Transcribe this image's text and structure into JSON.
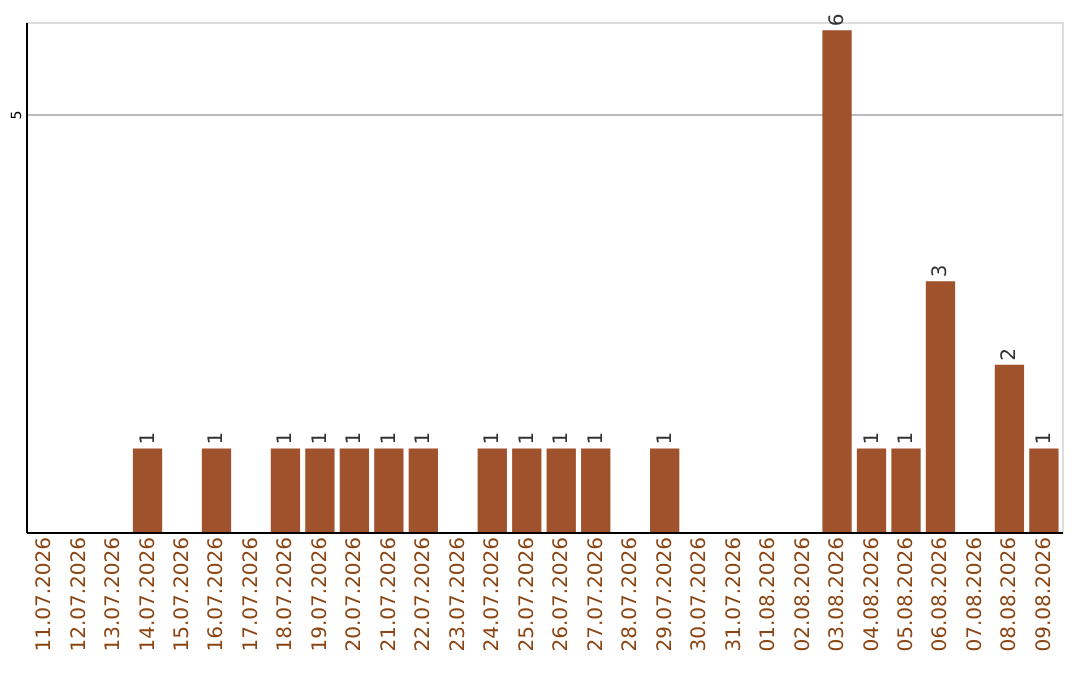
{
  "chart_data": {
    "type": "bar",
    "categories": [
      "11.07.2026",
      "12.07.2026",
      "13.07.2026",
      "14.07.2026",
      "15.07.2026",
      "16.07.2026",
      "17.07.2026",
      "18.07.2026",
      "19.07.2026",
      "20.07.2026",
      "21.07.2026",
      "22.07.2026",
      "23.07.2026",
      "24.07.2026",
      "25.07.2026",
      "26.07.2026",
      "27.07.2026",
      "28.07.2026",
      "29.07.2026",
      "30.07.2026",
      "31.07.2026",
      "01.08.2026",
      "02.08.2026",
      "03.08.2026",
      "04.08.2026",
      "05.08.2026",
      "06.08.2026",
      "07.08.2026",
      "08.08.2026",
      "09.08.2026"
    ],
    "values": [
      null,
      null,
      null,
      1,
      null,
      1,
      null,
      1,
      1,
      1,
      1,
      1,
      null,
      1,
      1,
      1,
      1,
      null,
      1,
      null,
      null,
      null,
      null,
      6,
      1,
      1,
      3,
      null,
      2,
      1
    ],
    "color": "#a0522d",
    "ylim": [
      0,
      6.1
    ],
    "yticks": [
      5
    ],
    "grid": "y",
    "data_labels": true
  }
}
